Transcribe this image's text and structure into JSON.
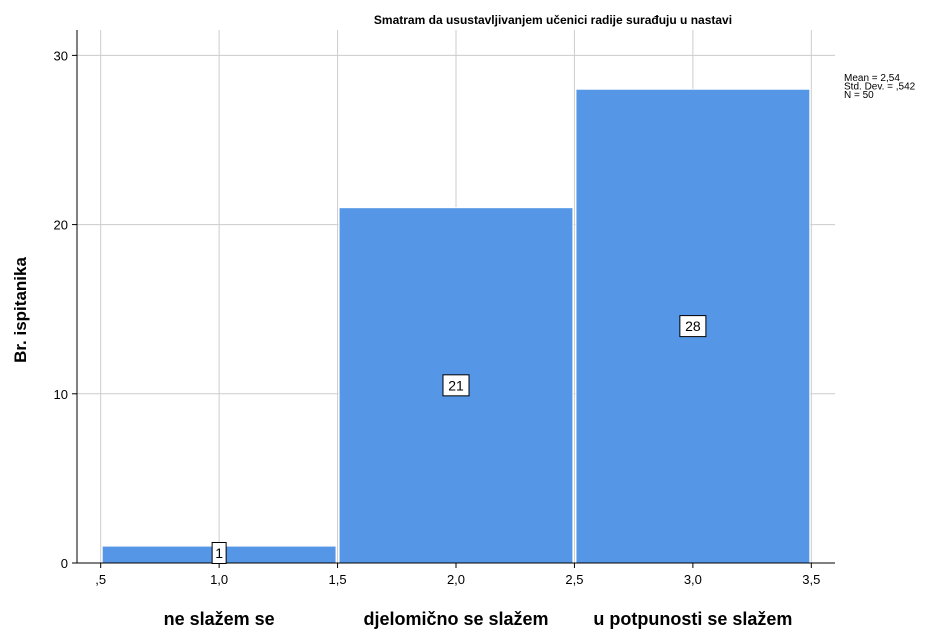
{
  "chart_data": {
    "type": "bar",
    "title": "Smatram da usustavljivanjem učenici radije surađuju u nastavi",
    "xlabel": "",
    "ylabel": "Br. ispitanika",
    "bins": [
      {
        "x_start": 0.5,
        "x_end": 1.5,
        "value": 1,
        "label": "1"
      },
      {
        "x_start": 1.5,
        "x_end": 2.5,
        "value": 21,
        "label": "21"
      },
      {
        "x_start": 2.5,
        "x_end": 3.5,
        "value": 28,
        "label": "28"
      }
    ],
    "xlim": [
      0.4,
      3.6
    ],
    "ylim": [
      0,
      31.5
    ],
    "x_ticks": [
      0.5,
      1.0,
      1.5,
      2.0,
      2.5,
      3.0,
      3.5
    ],
    "x_tick_labels": [
      ",5",
      "1,0",
      "1,5",
      "2,0",
      "2,5",
      "3,0",
      "3,5"
    ],
    "y_ticks": [
      0,
      10,
      20,
      30
    ],
    "y_tick_labels": [
      "0",
      "10",
      "20",
      "30"
    ],
    "category_labels": [
      "ne slažem se",
      "djelomično se slažem",
      "u potpunosti se slažem"
    ],
    "stats": [
      "Mean = 2,54",
      "Std. Dev. = ,542",
      "N = 50"
    ],
    "grid": true,
    "bar_color": "#5596e6",
    "bar_edge_color": "#ffffff"
  }
}
